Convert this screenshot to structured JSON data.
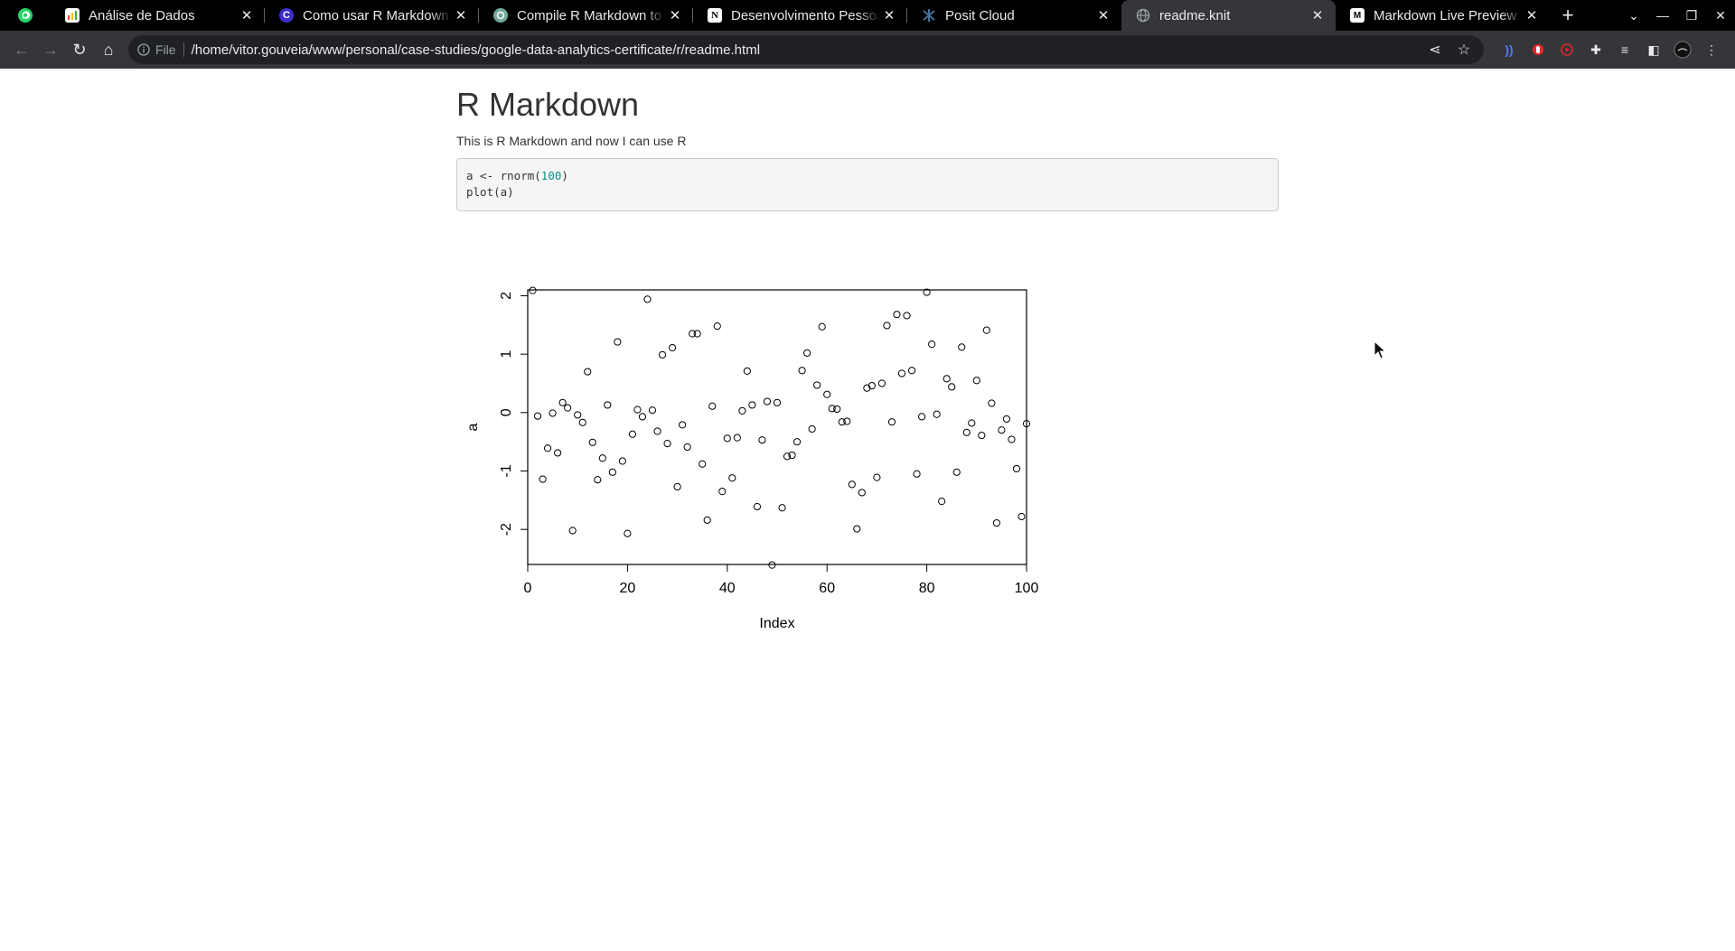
{
  "browser": {
    "tabs": [
      {
        "title": "Análise de Dados",
        "favicon": "sheets-icon",
        "color": "#34a853"
      },
      {
        "title": "Como usar R Markdown e",
        "favicon": "c-icon",
        "color": "#3d2ecc"
      },
      {
        "title": "Compile R Markdown to H",
        "favicon": "chatgpt-icon",
        "color": "#74aa9c"
      },
      {
        "title": "Desenvolvimento Pessoal",
        "favicon": "notion-icon",
        "color": "#ffffff"
      },
      {
        "title": "Posit Cloud",
        "favicon": "posit-icon",
        "color": "#447099"
      },
      {
        "title": "readme.knit",
        "favicon": "globe-icon",
        "color": "#9aa0a6",
        "active": true
      },
      {
        "title": "Markdown Live Preview",
        "favicon": "m-icon",
        "color": "#ffffff"
      }
    ],
    "address": {
      "scheme_label": "File",
      "url": "/home/vitor.gouveia/www/personal/case-studies/google-data-analytics-certificate/r/readme.html"
    }
  },
  "page": {
    "heading": "R Markdown",
    "intro": "This is R Markdown and now I can use R",
    "code": {
      "line1_prefix": "a <- rnorm(",
      "line1_number": "100",
      "line1_suffix": ")",
      "line2": "plot(a)"
    }
  },
  "chart_data": {
    "type": "scatter",
    "title": "",
    "xlabel": "Index",
    "ylabel": "a",
    "xlim": [
      0,
      100
    ],
    "ylim": [
      -2.6,
      2.1
    ],
    "xticks": [
      0,
      20,
      40,
      60,
      80,
      100
    ],
    "yticks": [
      -2,
      -1,
      0,
      1,
      2
    ],
    "grid": false,
    "legend": "none",
    "x": [
      1,
      2,
      3,
      4,
      5,
      6,
      7,
      8,
      9,
      10,
      11,
      12,
      13,
      14,
      15,
      16,
      17,
      18,
      19,
      20,
      21,
      22,
      23,
      24,
      25,
      26,
      27,
      28,
      29,
      30,
      31,
      32,
      33,
      34,
      35,
      36,
      37,
      38,
      39,
      40,
      41,
      42,
      43,
      44,
      45,
      46,
      47,
      48,
      49,
      50,
      51,
      52,
      53,
      54,
      55,
      56,
      57,
      58,
      59,
      60,
      61,
      62,
      63,
      64,
      65,
      66,
      67,
      68,
      69,
      70,
      71,
      72,
      73,
      74,
      75,
      76,
      77,
      78,
      79,
      80,
      81,
      82,
      83,
      84,
      85,
      86,
      87,
      88,
      89,
      90,
      91,
      92,
      93,
      94,
      95,
      96,
      97,
      98,
      99,
      100
    ],
    "y": [
      2.09,
      -0.06,
      -1.14,
      -0.61,
      -0.01,
      -0.69,
      0.17,
      0.08,
      -2.02,
      -0.04,
      -0.17,
      0.7,
      -0.51,
      -1.15,
      -0.78,
      0.13,
      -1.02,
      1.21,
      -0.83,
      -2.07,
      -0.37,
      0.05,
      -0.07,
      1.94,
      0.04,
      -0.32,
      0.99,
      -0.53,
      1.11,
      -1.27,
      -0.21,
      -0.59,
      1.35,
      1.35,
      -0.88,
      -1.84,
      0.11,
      1.48,
      -1.35,
      -0.44,
      -1.12,
      -0.43,
      0.03,
      0.71,
      0.13,
      -1.61,
      -0.47,
      0.19,
      -2.61,
      0.17,
      -1.63,
      -0.75,
      -0.73,
      -0.5,
      0.72,
      1.02,
      -0.28,
      0.47,
      1.47,
      0.31,
      0.07,
      0.06,
      -0.16,
      -0.15,
      -1.23,
      -1.99,
      -1.37,
      0.42,
      0.46,
      -1.11,
      0.5,
      1.49,
      -0.16,
      1.68,
      0.67,
      1.66,
      0.72,
      -1.05,
      -0.07,
      2.06,
      1.17,
      -0.03,
      -1.52,
      0.58,
      0.44,
      -1.02,
      1.12,
      -0.34,
      -0.18,
      0.55,
      -0.39,
      1.41,
      0.16,
      -1.89,
      -0.3,
      -0.11,
      -0.46,
      -0.96,
      -1.78,
      -0.19
    ]
  }
}
